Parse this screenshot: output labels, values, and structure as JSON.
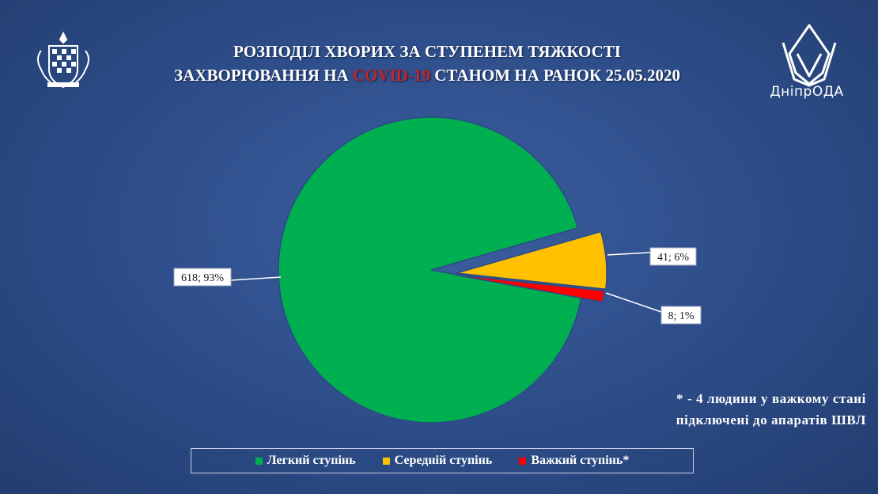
{
  "header": {
    "title_line1": "РОЗПОДІЛ ХВОРИХ ЗА СТУПЕНЕМ ТЯЖКОСТІ",
    "title_line2_prefix": "ЗАХВОРЮВАННЯ НА ",
    "title_line2_highlight": "COVID-19",
    "title_line2_suffix": " СТАНОМ НА РАНОК 25.05.2020",
    "logo_text": "ДніпрОДА"
  },
  "chart_data": {
    "type": "pie",
    "slices": [
      {
        "label": "Легкий ступінь",
        "value": 618,
        "percent": "93%",
        "data_label": "618; 93%",
        "color": "#00b050"
      },
      {
        "label": "Середній ступінь",
        "value": 41,
        "percent": "6%",
        "data_label": "41; 6%",
        "color": "#ffc000"
      },
      {
        "label": "Важкий ступінь*",
        "value": 8,
        "percent": "1%",
        "data_label": "8; 1%",
        "color": "#ff0000"
      }
    ],
    "legend_position": "bottom"
  },
  "footnote": {
    "line1": "* - 4 людини у важкому стані",
    "line2": "підключені до апаратів ШВЛ"
  },
  "colors": {
    "background": "#2f4f8c",
    "title_highlight": "#c0262a"
  }
}
